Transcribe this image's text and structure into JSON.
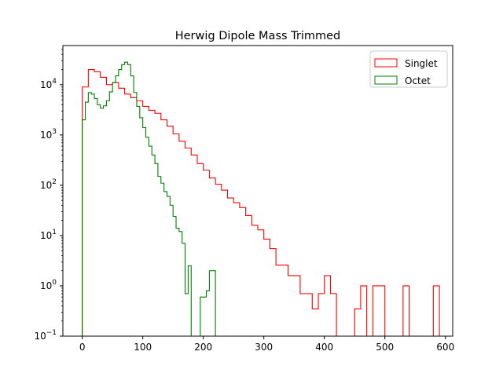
{
  "chart_data": {
    "type": "histogram",
    "title": "Herwig Dipole Mass Trimmed",
    "xlabel": "",
    "ylabel": "",
    "xlim": [
      -32,
      612
    ],
    "ylim": [
      0.1,
      60000
    ],
    "yscale": "log",
    "xticks": [
      0,
      100,
      200,
      300,
      400,
      500,
      600
    ],
    "yticks": [
      0.1,
      1,
      10,
      100,
      1000,
      10000
    ],
    "ytick_labels": [
      {
        "base": "10",
        "exp": "−1"
      },
      {
        "base": "10",
        "exp": "0"
      },
      {
        "base": "10",
        "exp": "1"
      },
      {
        "base": "10",
        "exp": "2"
      },
      {
        "base": "10",
        "exp": "3"
      },
      {
        "base": "10",
        "exp": "4"
      }
    ],
    "grid": false,
    "legend_position": "top-right",
    "series": [
      {
        "name": "Singlet",
        "color": "#ff0000",
        "bin_width": 10,
        "bin_start": 0,
        "values": [
          9000,
          20000,
          18000,
          14000,
          10000,
          11000,
          8500,
          6500,
          5500,
          4800,
          3700,
          3100,
          2700,
          2000,
          1500,
          1050,
          750,
          550,
          400,
          270,
          200,
          140,
          105,
          80,
          56,
          45,
          36,
          25,
          16,
          13,
          8.5,
          5.5,
          2.6,
          2.6,
          1.6,
          1.6,
          0.7,
          0.7,
          0.35,
          0.7,
          1.6,
          0.7,
          0,
          0,
          0,
          0.35,
          1,
          0,
          1,
          1,
          0,
          0,
          0,
          1,
          0,
          0,
          0,
          0,
          1
        ]
      },
      {
        "name": "Octet",
        "color": "#008000",
        "bin_width": 5,
        "bin_start": 0,
        "values": [
          2000,
          4500,
          7000,
          6500,
          5300,
          4000,
          3400,
          3800,
          4800,
          7200,
          11000,
          15000,
          20000,
          25000,
          28000,
          25000,
          15000,
          7000,
          3700,
          2200,
          1400,
          900,
          600,
          400,
          270,
          150,
          110,
          75,
          60,
          40,
          24,
          14,
          12,
          7,
          0.7,
          2.5,
          0,
          0,
          0,
          0.6,
          0.6,
          0.8,
          2,
          2
        ]
      }
    ]
  }
}
